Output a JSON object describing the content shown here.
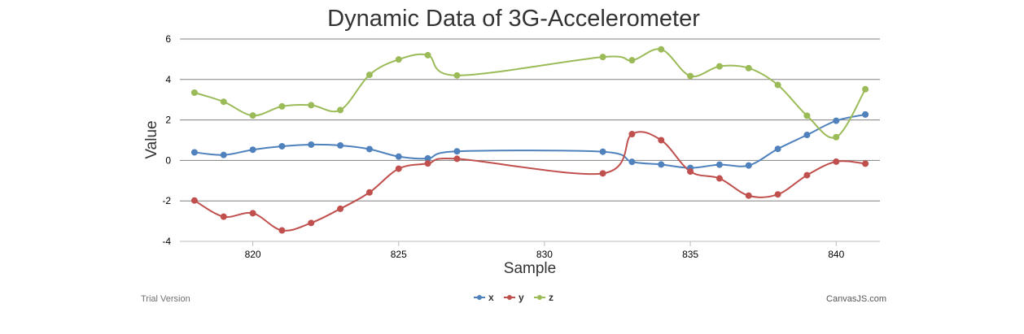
{
  "chart_data": {
    "type": "line",
    "title": "Dynamic Data of 3G-Accelerometer",
    "xlabel": "Sample",
    "ylabel": "Value",
    "xlim": [
      817.5,
      841.5
    ],
    "ylim": [
      -4,
      6
    ],
    "x_ticks": [
      820,
      825,
      830,
      835,
      840
    ],
    "y_ticks": [
      -4,
      -2,
      0,
      2,
      4,
      6
    ],
    "grid": "horizontal",
    "legend_position": "bottom-center",
    "x": [
      818,
      819,
      820,
      821,
      822,
      823,
      824,
      825,
      826,
      827,
      832,
      833,
      834,
      835,
      836,
      837,
      838,
      839,
      840,
      841
    ],
    "series": [
      {
        "name": "x",
        "color": "#4F81BC",
        "values": [
          0.4,
          0.27,
          0.53,
          0.7,
          0.78,
          0.74,
          0.56,
          0.19,
          0.1,
          0.45,
          0.43,
          -0.07,
          -0.2,
          -0.37,
          -0.21,
          -0.25,
          0.57,
          1.26,
          1.96,
          2.27
        ]
      },
      {
        "name": "y",
        "color": "#C0504E",
        "values": [
          -1.98,
          -2.78,
          -2.61,
          -3.46,
          -3.09,
          -2.39,
          -1.58,
          -0.41,
          -0.15,
          0.08,
          -0.64,
          1.3,
          1.0,
          -0.55,
          -0.89,
          -1.74,
          -1.68,
          -0.73,
          -0.06,
          -0.16
        ]
      },
      {
        "name": "z",
        "color": "#9BBB58",
        "values": [
          3.35,
          2.9,
          2.22,
          2.67,
          2.73,
          2.49,
          4.23,
          4.99,
          5.2,
          4.2,
          5.11,
          4.95,
          5.49,
          4.17,
          4.65,
          4.56,
          3.73,
          2.21,
          1.15,
          3.52
        ]
      }
    ]
  },
  "credits": {
    "left": "Trial Version",
    "right": "CanvasJS.com"
  }
}
